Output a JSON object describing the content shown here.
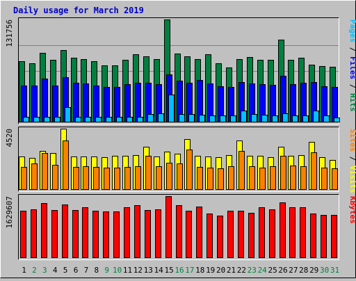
{
  "chart_data": {
    "type": "bar",
    "title": "Daily usage for March 2019",
    "categories": [
      "1",
      "2",
      "3",
      "4",
      "5",
      "6",
      "7",
      "8",
      "9",
      "10",
      "11",
      "12",
      "13",
      "14",
      "15",
      "16",
      "17",
      "18",
      "19",
      "20",
      "21",
      "22",
      "23",
      "24",
      "25",
      "26",
      "27",
      "28",
      "29",
      "30",
      "31"
    ],
    "weekend_days": [
      2,
      3,
      9,
      10,
      16,
      17,
      23,
      24,
      30,
      31
    ],
    "colors": {
      "background": "#c0c0c0",
      "title": "#0000cc",
      "hits": "#008040",
      "files": "#0000ff",
      "pages": "#00c0ff",
      "visits": "#ffff00",
      "sites": "#ff8000",
      "kbytes": "#ff0000",
      "weekday_label": "#000000",
      "weekend_label": "#008040"
    },
    "panels": [
      {
        "name": "requests",
        "ymax_label": "131756",
        "ymax": 131756,
        "right_labels": [
          {
            "text": "Pages",
            "color": "#00c0ff"
          },
          {
            "text": " / ",
            "color": "#000000"
          },
          {
            "text": "Files",
            "color": "#0000ff"
          },
          {
            "text": " / ",
            "color": "#000000"
          },
          {
            "text": "Hits",
            "color": "#008040"
          }
        ],
        "series": [
          {
            "name": "Hits",
            "color": "#008040",
            "values": [
              78000,
              76000,
              89000,
              80000,
              93000,
              83000,
              81000,
              78000,
              73000,
              73000,
              80000,
              87000,
              85000,
              81000,
              131756,
              88000,
              85000,
              81000,
              87000,
              76000,
              70000,
              81000,
              84000,
              80000,
              80000,
              106000,
              80000,
              83000,
              74000,
              72000,
              71000
            ]
          },
          {
            "name": "Files",
            "color": "#0000ff",
            "values": [
              47000,
              47000,
              56000,
              47000,
              58000,
              51000,
              50000,
              47000,
              45000,
              45000,
              49000,
              51000,
              51000,
              49000,
              61000,
              53000,
              51000,
              54000,
              50000,
              46000,
              45000,
              52000,
              50000,
              49000,
              48000,
              60000,
              49000,
              51000,
              52000,
              46000,
              45000
            ]
          },
          {
            "name": "Pages",
            "color": "#00c0ff",
            "values": [
              7000,
              7500,
              7000,
              7000,
              20000,
              7500,
              7000,
              7000,
              7000,
              7000,
              7500,
              7500,
              11000,
              12000,
              36000,
              11000,
              11000,
              10000,
              9000,
              9000,
              9000,
              15000,
              10500,
              10000,
              9000,
              12000,
              9000,
              9000,
              15000,
              9000,
              6000
            ]
          }
        ]
      },
      {
        "name": "visits",
        "ymax_label": "4520",
        "ymax": 4520,
        "right_labels": [
          {
            "text": "Sites",
            "color": "#ff8000"
          },
          {
            "text": " / ",
            "color": "#000000"
          },
          {
            "text": "Visits",
            "color": "#ffff00"
          }
        ],
        "series": [
          {
            "name": "Visits",
            "color": "#ffff00",
            "values": [
              2490,
              2380,
              2890,
              2720,
              4520,
              2490,
              2460,
              2470,
              2400,
              2500,
              2520,
              2590,
              3210,
              2490,
              2850,
              2690,
              3750,
              2510,
              2490,
              2410,
              2590,
              3650,
              2520,
              2530,
              2390,
              3210,
              2510,
              2560,
              3520,
              2420,
              2230
            ]
          },
          {
            "name": "Sites",
            "color": "#ff8000",
            "values": [
              1700,
              1970,
              2710,
              1850,
              3650,
              1690,
              1730,
              1680,
              1630,
              1650,
              1670,
              1770,
              2540,
              1740,
              2000,
              1930,
              2960,
              1720,
              1660,
              1570,
              1760,
              2900,
              1750,
              1640,
              1760,
              2520,
              1790,
              1760,
              2770,
              1640,
              1610
            ]
          }
        ]
      },
      {
        "name": "kbytes",
        "ymax_label": "1629607",
        "ymax": 1629607,
        "right_labels": [
          {
            "text": "KBytes",
            "color": "#ff0000"
          }
        ],
        "series": [
          {
            "name": "KBytes",
            "color": "#ff0000",
            "values": [
              1240000,
              1280000,
              1440000,
              1260000,
              1410000,
              1270000,
              1330000,
              1240000,
              1220000,
              1230000,
              1340000,
              1390000,
              1260000,
              1290000,
              1629607,
              1390000,
              1250000,
              1360000,
              1170000,
              1110000,
              1250000,
              1240000,
              1190000,
              1330000,
              1290000,
              1460000,
              1330000,
              1330000,
              1180000,
              1140000,
              1140000
            ]
          }
        ]
      }
    ]
  }
}
